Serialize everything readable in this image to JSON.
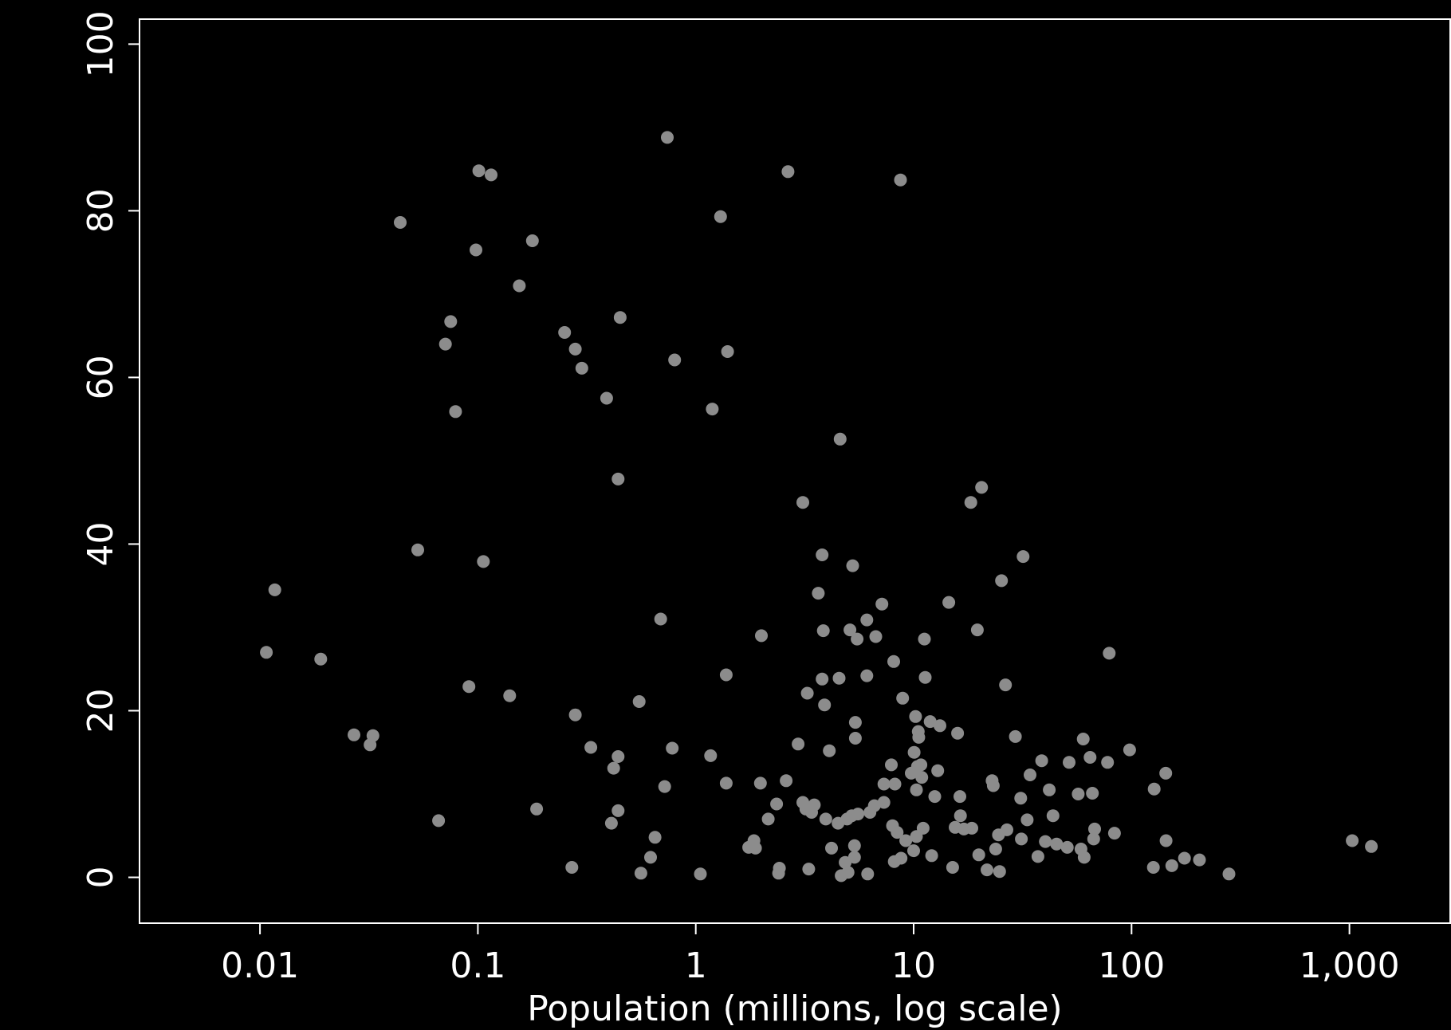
{
  "chart_data": {
    "type": "scatter",
    "title": "",
    "xlabel": "Population (millions, log scale)",
    "ylabel": "",
    "x_scale": "log",
    "xlim": [
      0.0028,
      2900
    ],
    "ylim": [
      -5.5,
      103
    ],
    "x_ticks": [
      0.01,
      0.1,
      1,
      10,
      100,
      1000
    ],
    "x_tick_labels": [
      "0.01",
      "0.1",
      "1",
      "10",
      "100",
      "1,000"
    ],
    "y_ticks": [
      0,
      20,
      40,
      60,
      80,
      100
    ],
    "y_tick_labels": [
      "0",
      "20",
      "40",
      "60",
      "80",
      "100"
    ],
    "grid": false,
    "background": "#000000",
    "point_color": "#8c8c8c",
    "axis_color": "#ffffff",
    "points": [
      [
        0.0107,
        27.0
      ],
      [
        0.0117,
        34.5
      ],
      [
        0.019,
        26.2
      ],
      [
        0.027,
        17.1
      ],
      [
        0.032,
        15.9
      ],
      [
        0.033,
        17.0
      ],
      [
        0.044,
        78.6
      ],
      [
        0.053,
        39.3
      ],
      [
        0.066,
        6.8
      ],
      [
        0.071,
        64.0
      ],
      [
        0.075,
        66.7
      ],
      [
        0.079,
        55.9
      ],
      [
        0.091,
        22.9
      ],
      [
        0.098,
        75.3
      ],
      [
        0.101,
        84.8
      ],
      [
        0.106,
        37.9
      ],
      [
        0.115,
        84.3
      ],
      [
        0.14,
        21.8
      ],
      [
        0.155,
        71.0
      ],
      [
        0.178,
        76.4
      ],
      [
        0.186,
        8.2
      ],
      [
        0.25,
        65.4
      ],
      [
        0.27,
        1.2
      ],
      [
        0.28,
        19.5
      ],
      [
        0.28,
        63.4
      ],
      [
        0.3,
        61.1
      ],
      [
        0.33,
        15.6
      ],
      [
        0.39,
        57.5
      ],
      [
        0.41,
        6.5
      ],
      [
        0.42,
        13.1
      ],
      [
        0.44,
        47.8
      ],
      [
        0.44,
        8.0
      ],
      [
        0.44,
        14.5
      ],
      [
        0.45,
        67.2
      ],
      [
        0.55,
        21.1
      ],
      [
        0.56,
        0.5
      ],
      [
        0.62,
        2.4
      ],
      [
        0.65,
        4.8
      ],
      [
        0.69,
        31.0
      ],
      [
        0.72,
        10.9
      ],
      [
        0.74,
        88.8
      ],
      [
        0.78,
        15.5
      ],
      [
        0.8,
        62.1
      ],
      [
        1.05,
        0.4
      ],
      [
        1.17,
        14.6
      ],
      [
        1.19,
        56.2
      ],
      [
        1.3,
        79.3
      ],
      [
        1.38,
        24.3
      ],
      [
        1.38,
        11.3
      ],
      [
        1.4,
        63.1
      ],
      [
        1.75,
        3.6
      ],
      [
        1.85,
        4.4
      ],
      [
        1.88,
        3.5
      ],
      [
        1.98,
        11.3
      ],
      [
        2.0,
        29.0
      ],
      [
        2.15,
        7.0
      ],
      [
        2.35,
        8.8
      ],
      [
        2.4,
        0.5
      ],
      [
        2.42,
        1.1
      ],
      [
        2.6,
        11.6
      ],
      [
        2.65,
        84.7
      ],
      [
        2.95,
        16.0
      ],
      [
        3.1,
        45.0
      ],
      [
        3.1,
        9.0
      ],
      [
        3.2,
        8.2
      ],
      [
        3.25,
        22.1
      ],
      [
        3.3,
        1.0
      ],
      [
        3.4,
        7.8
      ],
      [
        3.5,
        8.7
      ],
      [
        3.65,
        34.1
      ],
      [
        3.8,
        38.7
      ],
      [
        3.8,
        23.8
      ],
      [
        3.85,
        29.6
      ],
      [
        3.9,
        20.7
      ],
      [
        3.95,
        7.0
      ],
      [
        4.1,
        15.2
      ],
      [
        4.2,
        3.5
      ],
      [
        4.5,
        6.5
      ],
      [
        4.55,
        23.9
      ],
      [
        4.6,
        52.6
      ],
      [
        4.65,
        0.2
      ],
      [
        4.85,
        1.8
      ],
      [
        4.95,
        7.0
      ],
      [
        5.0,
        0.6
      ],
      [
        5.1,
        29.7
      ],
      [
        5.2,
        7.4
      ],
      [
        5.25,
        37.4
      ],
      [
        5.35,
        2.4
      ],
      [
        5.35,
        3.8
      ],
      [
        5.4,
        18.6
      ],
      [
        5.4,
        16.7
      ],
      [
        5.5,
        28.6
      ],
      [
        5.55,
        7.6
      ],
      [
        6.1,
        24.2
      ],
      [
        6.1,
        30.9
      ],
      [
        6.15,
        0.4
      ],
      [
        6.3,
        7.8
      ],
      [
        6.6,
        8.6
      ],
      [
        6.7,
        28.9
      ],
      [
        7.15,
        32.8
      ],
      [
        7.3,
        9.0
      ],
      [
        7.3,
        11.2
      ],
      [
        7.9,
        13.5
      ],
      [
        8.0,
        6.2
      ],
      [
        8.1,
        25.9
      ],
      [
        8.15,
        1.9
      ],
      [
        8.2,
        11.2
      ],
      [
        8.4,
        5.4
      ],
      [
        8.7,
        83.7
      ],
      [
        8.75,
        2.3
      ],
      [
        8.9,
        21.5
      ],
      [
        9.2,
        4.4
      ],
      [
        9.75,
        12.5
      ],
      [
        10.0,
        3.2
      ],
      [
        10.05,
        15.0
      ],
      [
        10.2,
        19.3
      ],
      [
        10.3,
        10.5
      ],
      [
        10.3,
        4.9
      ],
      [
        10.4,
        13.3
      ],
      [
        10.5,
        17.5
      ],
      [
        10.55,
        16.8
      ],
      [
        10.8,
        13.5
      ],
      [
        10.9,
        12.0
      ],
      [
        11.05,
        5.9
      ],
      [
        11.2,
        28.6
      ],
      [
        11.3,
        24.0
      ],
      [
        11.9,
        18.7
      ],
      [
        12.1,
        2.6
      ],
      [
        12.5,
        9.7
      ],
      [
        12.9,
        12.8
      ],
      [
        13.2,
        18.2
      ],
      [
        14.5,
        33.0
      ],
      [
        15.1,
        1.2
      ],
      [
        15.5,
        6.0
      ],
      [
        15.9,
        17.3
      ],
      [
        16.3,
        9.7
      ],
      [
        16.4,
        7.4
      ],
      [
        17.0,
        5.8
      ],
      [
        18.3,
        45.0
      ],
      [
        18.5,
        5.9
      ],
      [
        19.6,
        29.7
      ],
      [
        19.9,
        2.7
      ],
      [
        20.5,
        46.8
      ],
      [
        21.7,
        0.9
      ],
      [
        22.9,
        11.6
      ],
      [
        23.2,
        11.0
      ],
      [
        23.8,
        3.4
      ],
      [
        24.5,
        5.1
      ],
      [
        24.8,
        0.7
      ],
      [
        25.3,
        35.6
      ],
      [
        26.4,
        23.1
      ],
      [
        26.8,
        5.7
      ],
      [
        29.3,
        16.9
      ],
      [
        31.0,
        9.5
      ],
      [
        31.2,
        4.6
      ],
      [
        31.8,
        38.5
      ],
      [
        33.2,
        6.9
      ],
      [
        34.2,
        12.3
      ],
      [
        37.2,
        2.5
      ],
      [
        38.7,
        14.0
      ],
      [
        40.2,
        4.3
      ],
      [
        41.9,
        10.5
      ],
      [
        43.6,
        7.4
      ],
      [
        45.3,
        4.0
      ],
      [
        50.7,
        3.6
      ],
      [
        51.7,
        13.8
      ],
      [
        56.9,
        10.0
      ],
      [
        58.6,
        3.4
      ],
      [
        60.0,
        16.6
      ],
      [
        60.6,
        2.4
      ],
      [
        64.5,
        14.4
      ],
      [
        66.1,
        10.1
      ],
      [
        67.0,
        4.6
      ],
      [
        67.7,
        5.8
      ],
      [
        77.6,
        13.8
      ],
      [
        79.0,
        26.9
      ],
      [
        83.5,
        5.3
      ],
      [
        98.0,
        15.3
      ],
      [
        126.0,
        1.2
      ],
      [
        127.0,
        10.6
      ],
      [
        143.5,
        12.5
      ],
      [
        144.0,
        4.4
      ],
      [
        153.0,
        1.4
      ],
      [
        175.0,
        2.3
      ],
      [
        205.0,
        2.1
      ],
      [
        280.0,
        0.4
      ],
      [
        1030.0,
        4.4
      ],
      [
        1260.0,
        3.7
      ]
    ]
  }
}
